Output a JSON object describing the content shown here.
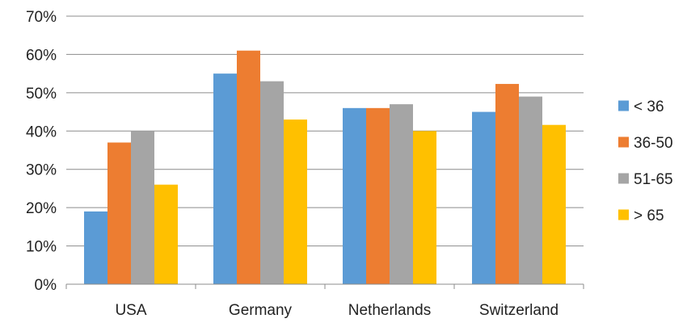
{
  "chart_data": {
    "type": "bar",
    "title": "",
    "xlabel": "",
    "ylabel": "",
    "categories": [
      "USA",
      "Germany",
      "Netherlands",
      "Switzerland"
    ],
    "series": [
      {
        "name": "< 36",
        "color": "#5b9bd5",
        "values": [
          19,
          55,
          46,
          45
        ]
      },
      {
        "name": "36-50",
        "color": "#ed7d31",
        "values": [
          37,
          61,
          46,
          52.3
        ]
      },
      {
        "name": "51-65",
        "color": "#a5a5a5",
        "values": [
          40,
          53,
          47,
          49
        ]
      },
      {
        "name": "> 65",
        "color": "#ffc000",
        "values": [
          26,
          43,
          40,
          41.6
        ]
      }
    ],
    "ylim": [
      0,
      70
    ],
    "ytick_labels": [
      "0%",
      "10%",
      "20%",
      "30%",
      "40%",
      "50%",
      "60%",
      "70%"
    ],
    "grid": true,
    "legend_position": "right"
  }
}
